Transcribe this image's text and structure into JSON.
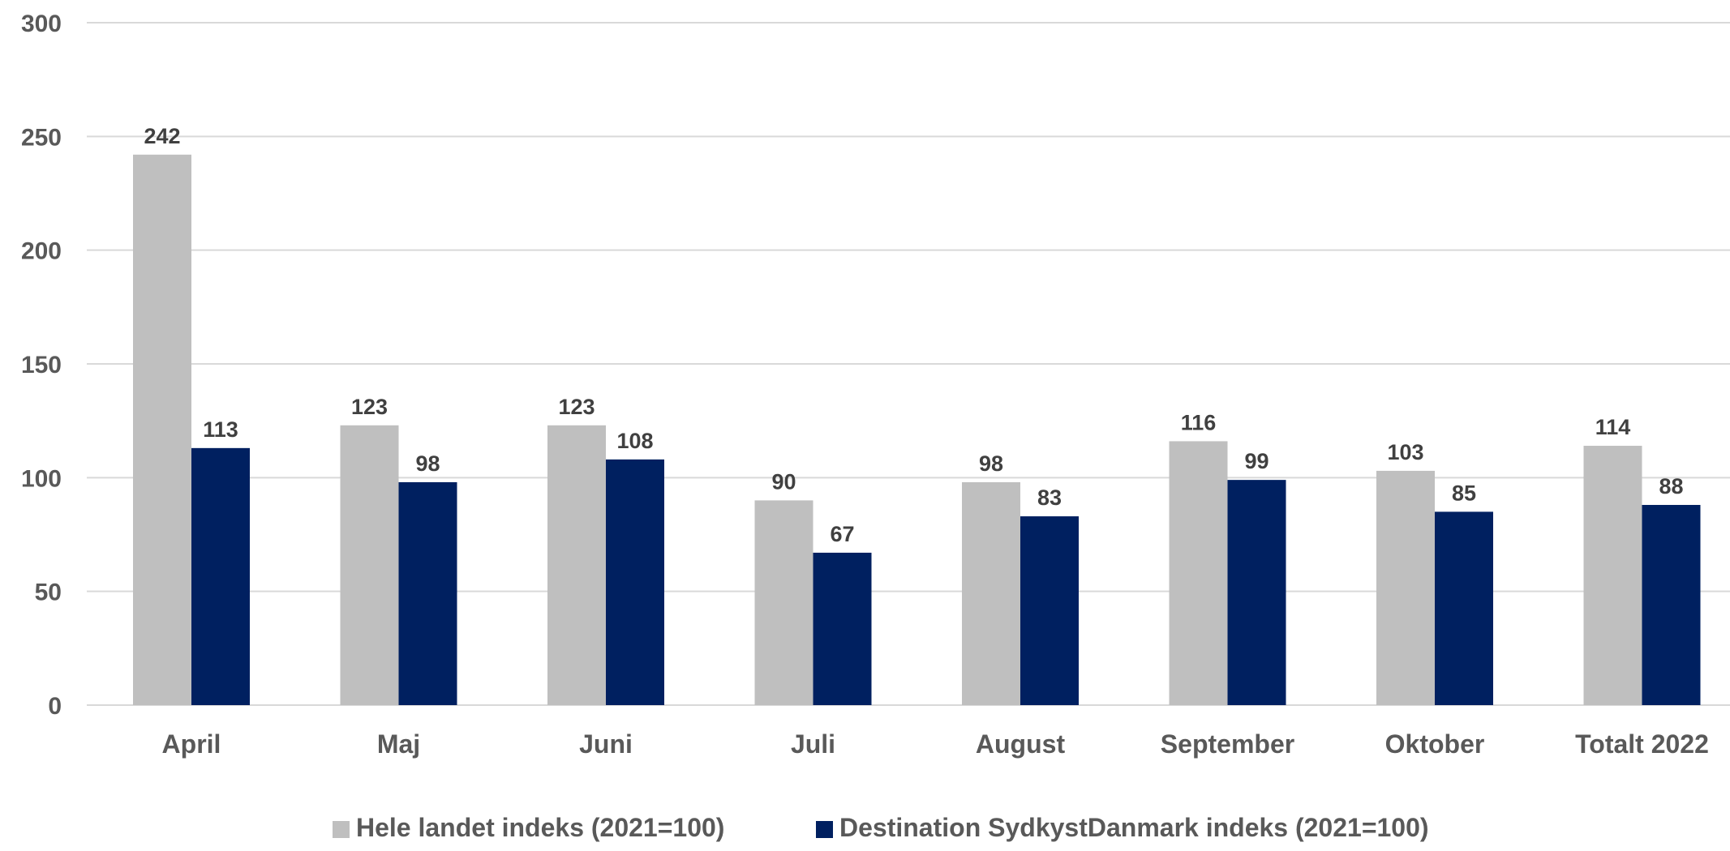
{
  "chart_data": {
    "type": "bar",
    "title": "",
    "xlabel": "",
    "ylabel": "",
    "ylim": [
      0,
      300
    ],
    "yticks": [
      0,
      50,
      100,
      150,
      200,
      250,
      300
    ],
    "grid": true,
    "legend_position": "bottom",
    "categories": [
      "April",
      "Maj",
      "Juni",
      "Juli",
      "August",
      "September",
      "Oktober",
      "Totalt 2022"
    ],
    "series": [
      {
        "name": "Hele landet indeks (2021=100)",
        "color": "#bfbfbf",
        "values": [
          242,
          123,
          123,
          90,
          98,
          116,
          103,
          114
        ]
      },
      {
        "name": "Destination SydkystDanmark indeks (2021=100)",
        "color": "#002060",
        "values": [
          113,
          98,
          108,
          67,
          83,
          99,
          85,
          88
        ]
      }
    ]
  }
}
